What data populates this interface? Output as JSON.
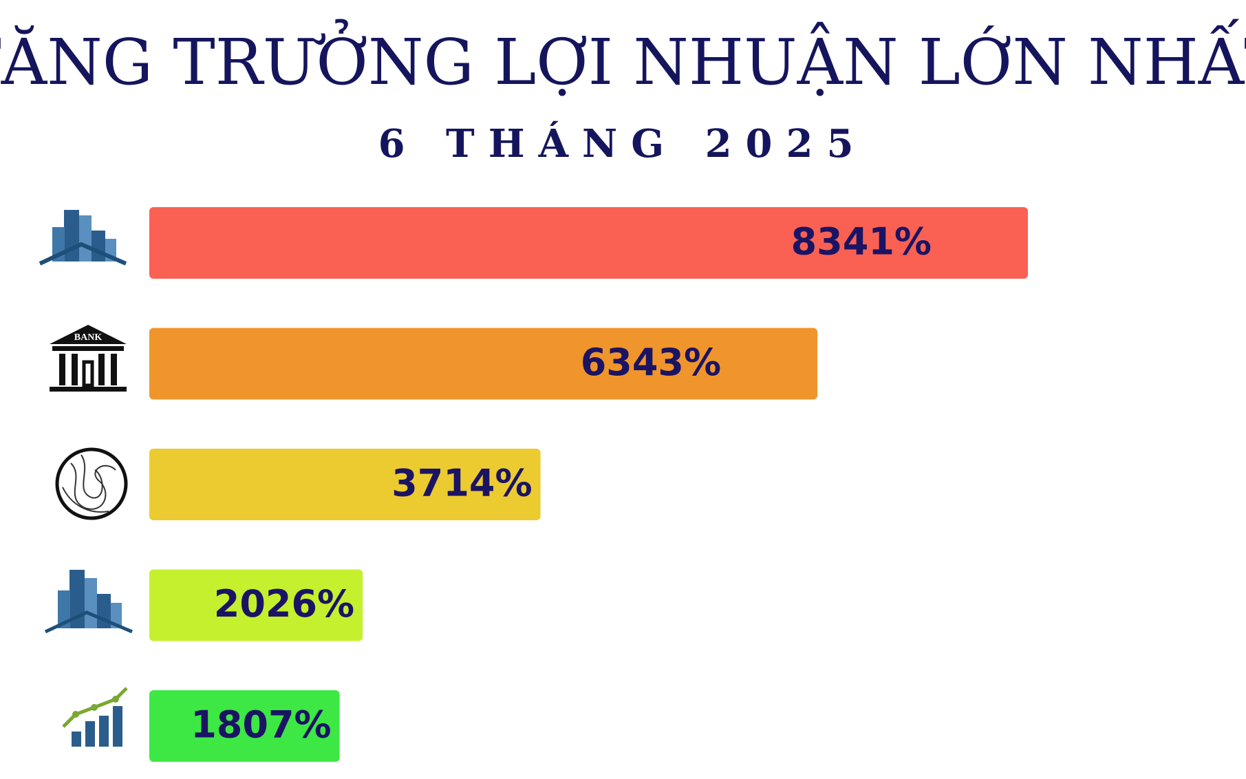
{
  "chart_data": {
    "type": "hbar",
    "title": "TĂNG TRƯỞNG LỢI NHUẬN LỚN NHẤT",
    "subtitle": "6 THÁNG 2025",
    "icon_label": "BANK",
    "categories": [
      null,
      null,
      null,
      null,
      null
    ],
    "values": [
      8341,
      6343,
      3714,
      2026,
      1807
    ],
    "value_labels": [
      "8341%",
      "6343%",
      "3714%",
      "2026%",
      "1807%"
    ],
    "colors": [
      "#fa6152",
      "#f0952b",
      "#ebcb30",
      "#c4f02e",
      "#3de845"
    ]
  }
}
